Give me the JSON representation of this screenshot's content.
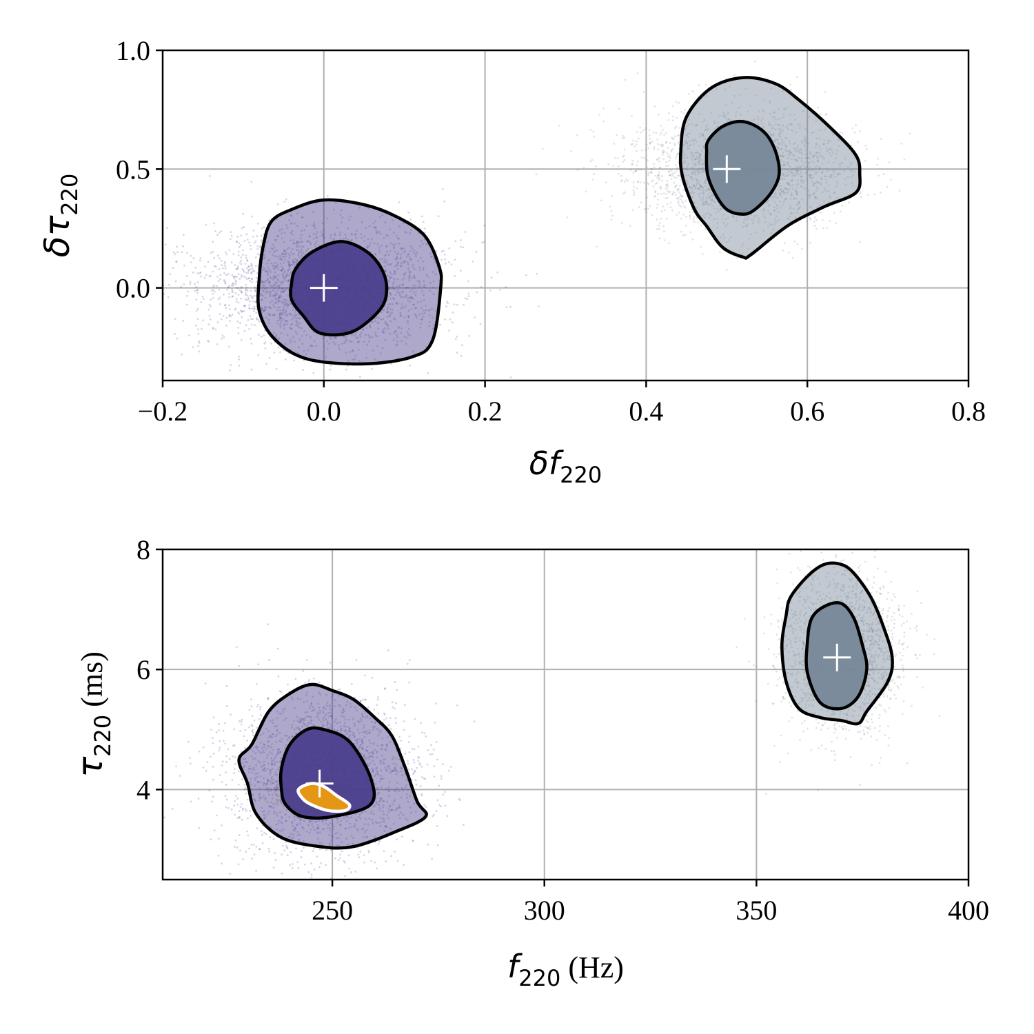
{
  "chart_data": [
    {
      "type": "scatter",
      "id": "top",
      "xlabel": {
        "sym": "δf",
        "sub": "220",
        "unit": ""
      },
      "ylabel": {
        "sym": "δτ",
        "sub": "220",
        "unit": ""
      },
      "xlim": [
        -0.2,
        0.8
      ],
      "ylim": [
        -0.39,
        1.0
      ],
      "xticks": [
        -0.2,
        0.0,
        0.2,
        0.4,
        0.6,
        0.8
      ],
      "xtick_labels": [
        "−0.2",
        "0.0",
        "0.2",
        "0.4",
        "0.6",
        "0.8"
      ],
      "yticks": [
        0.0,
        0.5,
        1.0
      ],
      "ytick_labels": [
        "0.0",
        "0.5",
        "1.0"
      ],
      "grid": true,
      "series": [
        {
          "color": "#483d8b",
          "fill": "#4b3f8c",
          "center": [
            0.0,
            0.0
          ],
          "spread": [
            0.075,
            0.13
          ],
          "n_points": 2600,
          "contour_outer": [
            [
              -0.065,
              0.28
            ],
            [
              -0.04,
              0.33
            ],
            [
              0.0,
              0.37
            ],
            [
              0.05,
              0.35
            ],
            [
              0.09,
              0.3
            ],
            [
              0.125,
              0.22
            ],
            [
              0.143,
              0.09
            ],
            [
              0.145,
              0.0
            ],
            [
              0.135,
              -0.22
            ],
            [
              0.11,
              -0.29
            ],
            [
              0.05,
              -0.32
            ],
            [
              -0.02,
              -0.3
            ],
            [
              -0.06,
              -0.22
            ],
            [
              -0.08,
              -0.1
            ],
            [
              -0.08,
              0.05
            ],
            [
              -0.075,
              0.18
            ]
          ],
          "contour_inner": [
            [
              -0.035,
              0.08
            ],
            [
              -0.015,
              0.15
            ],
            [
              0.02,
              0.195
            ],
            [
              0.05,
              0.16
            ],
            [
              0.07,
              0.09
            ],
            [
              0.078,
              0.0
            ],
            [
              0.07,
              -0.09
            ],
            [
              0.035,
              -0.185
            ],
            [
              -0.005,
              -0.19
            ],
            [
              -0.025,
              -0.12
            ],
            [
              -0.04,
              -0.05
            ],
            [
              -0.04,
              0.02
            ]
          ],
          "marker": [
            0.0,
            0.0
          ]
        },
        {
          "color": "#708090",
          "fill": "#778899",
          "center": [
            0.515,
            0.5
          ],
          "spread": [
            0.065,
            0.12
          ],
          "n_points": 2200,
          "contour_outer": [
            [
              0.45,
              0.72
            ],
            [
              0.48,
              0.84
            ],
            [
              0.52,
              0.885
            ],
            [
              0.56,
              0.86
            ],
            [
              0.59,
              0.79
            ],
            [
              0.63,
              0.67
            ],
            [
              0.66,
              0.56
            ],
            [
              0.665,
              0.48
            ],
            [
              0.66,
              0.4
            ],
            [
              0.62,
              0.34
            ],
            [
              0.575,
              0.26
            ],
            [
              0.53,
              0.14
            ],
            [
              0.52,
              0.13
            ],
            [
              0.495,
              0.17
            ],
            [
              0.475,
              0.26
            ],
            [
              0.46,
              0.33
            ],
            [
              0.445,
              0.47
            ],
            [
              0.443,
              0.58
            ]
          ],
          "contour_inner": [
            [
              0.477,
              0.62
            ],
            [
              0.495,
              0.68
            ],
            [
              0.52,
              0.7
            ],
            [
              0.545,
              0.66
            ],
            [
              0.56,
              0.58
            ],
            [
              0.565,
              0.48
            ],
            [
              0.555,
              0.4
            ],
            [
              0.535,
              0.33
            ],
            [
              0.52,
              0.31
            ],
            [
              0.5,
              0.33
            ],
            [
              0.485,
              0.4
            ],
            [
              0.476,
              0.48
            ],
            [
              0.475,
              0.57
            ]
          ],
          "marker": [
            0.5,
            0.5
          ]
        }
      ]
    },
    {
      "type": "scatter",
      "id": "bottom",
      "xlabel": {
        "sym": "f",
        "sub": "220",
        "unit": "(Hz)"
      },
      "ylabel": {
        "sym": "τ",
        "sub": "220",
        "unit": "(ms)"
      },
      "xlim": [
        210,
        400
      ],
      "ylim": [
        2.5,
        8.0
      ],
      "xticks": [
        250,
        300,
        350,
        400
      ],
      "xtick_labels": [
        "250",
        "300",
        "350",
        "400"
      ],
      "yticks": [
        4,
        6,
        8
      ],
      "ytick_labels": [
        "4",
        "6",
        "8"
      ],
      "grid": true,
      "series": [
        {
          "color": "#483d8b",
          "fill": "#4b3f8c",
          "center": [
            248,
            4.25
          ],
          "spread": [
            10.5,
            0.65
          ],
          "n_points": 2400,
          "contour_outer": [
            [
              231,
              4.75
            ],
            [
              235,
              5.3
            ],
            [
              240,
              5.6
            ],
            [
              245,
              5.75
            ],
            [
              250,
              5.65
            ],
            [
              255,
              5.5
            ],
            [
              260,
              5.2
            ],
            [
              264,
              4.9
            ],
            [
              267,
              4.4
            ],
            [
              270,
              3.8
            ],
            [
              272,
              3.55
            ],
            [
              265,
              3.3
            ],
            [
              255,
              3.05
            ],
            [
              247,
              3.05
            ],
            [
              238,
              3.2
            ],
            [
              232,
              3.6
            ],
            [
              230,
              4.1
            ],
            [
              228,
              4.5
            ]
          ],
          "contour_inner": [
            [
              238,
              4.35
            ],
            [
              240,
              4.75
            ],
            [
              244,
              5.0
            ],
            [
              248,
              5.0
            ],
            [
              254,
              4.8
            ],
            [
              259,
              4.2
            ],
            [
              259,
              3.75
            ],
            [
              250,
              3.55
            ],
            [
              243,
              3.55
            ],
            [
              239,
              3.75
            ],
            [
              238,
              4.0
            ]
          ],
          "marker": [
            247,
            4.1
          ]
        },
        {
          "color": "#708090",
          "fill": "#778899",
          "center": [
            370,
            6.3
          ],
          "spread": [
            6.5,
            0.65
          ],
          "n_points": 2000,
          "contour_outer": [
            [
              358,
              7.2
            ],
            [
              362,
              7.55
            ],
            [
              366,
              7.75
            ],
            [
              370,
              7.75
            ],
            [
              373,
              7.6
            ],
            [
              377,
              7.2
            ],
            [
              380,
              6.7
            ],
            [
              382,
              6.2
            ],
            [
              381,
              5.8
            ],
            [
              376,
              5.3
            ],
            [
              374,
              5.1
            ],
            [
              370,
              5.15
            ],
            [
              365,
              5.2
            ],
            [
              360,
              5.35
            ],
            [
              357,
              5.8
            ],
            [
              356,
              6.4
            ],
            [
              357,
              6.9
            ]
          ],
          "contour_inner": [
            [
              363,
              6.85
            ],
            [
              366,
              7.05
            ],
            [
              370,
              7.1
            ],
            [
              373,
              6.85
            ],
            [
              375,
              6.4
            ],
            [
              376,
              6.0
            ],
            [
              374,
              5.55
            ],
            [
              370,
              5.35
            ],
            [
              365,
              5.45
            ],
            [
              362,
              5.95
            ],
            [
              362,
              6.45
            ]
          ],
          "marker": [
            369,
            6.2
          ]
        },
        {
          "color": "#ffa500",
          "fill": "#ffa500",
          "center": [
            247,
            3.85
          ],
          "spread": [
            4.0,
            0.12
          ],
          "n_points": 700,
          "contour_outer": [
            [
              242,
              4.0
            ],
            [
              245,
              4.1
            ],
            [
              248,
              4.05
            ],
            [
              251,
              3.9
            ],
            [
              254,
              3.75
            ],
            [
              253,
              3.65
            ],
            [
              249,
              3.65
            ],
            [
              245,
              3.75
            ],
            [
              243,
              3.85
            ]
          ],
          "contour_inner": [],
          "contour_color": "#ffffff",
          "marker": null
        }
      ]
    }
  ]
}
